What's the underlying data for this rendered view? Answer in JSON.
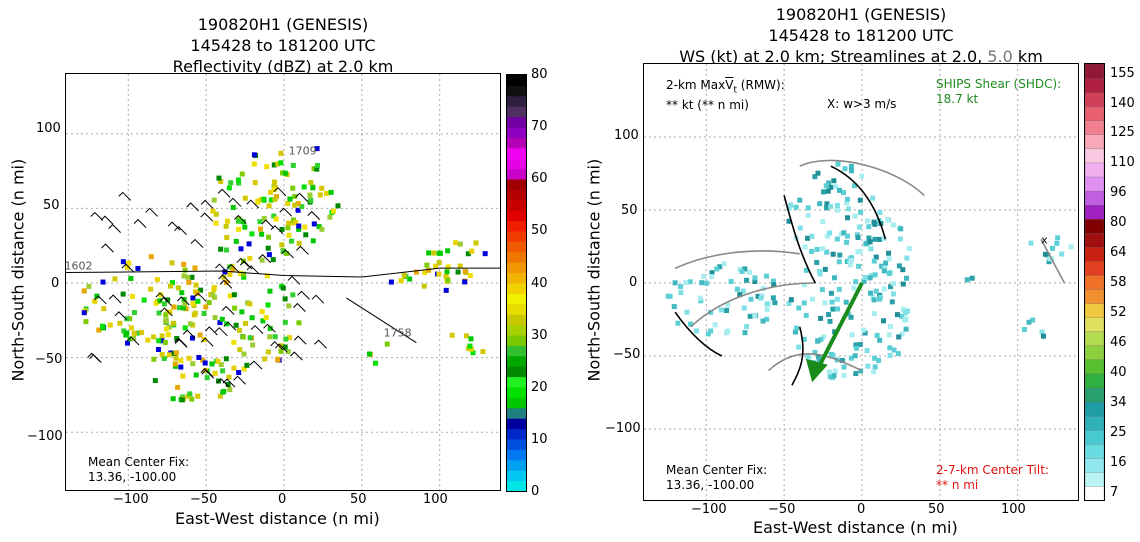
{
  "colors": {
    "shear_arrow": "#1a8c1a",
    "shear_text": "#228b22",
    "tilt_text": "#e01010",
    "grey_label": "#777777"
  },
  "left_panel": {
    "title_lines": [
      "190820H1 (GENESIS)",
      "145428 to 181200 UTC",
      "Reflectivity (dBZ) at 2.0 km"
    ],
    "xlabel": "East-West distance (n mi)",
    "ylabel": "North-South distance (n mi)",
    "xticks": [
      "−100",
      "−50",
      "0",
      "50",
      "100"
    ],
    "yticks": [
      "100",
      "50",
      "0",
      "−50",
      "−100"
    ],
    "mean_center_label": "Mean Center Fix:",
    "mean_center_value": "13.36, -100.00",
    "track_labels": [
      "1602",
      "1709",
      "1758"
    ],
    "colorbar_ticks": [
      "80",
      "70",
      "60",
      "50",
      "40",
      "30",
      "20",
      "10",
      "0"
    ]
  },
  "right_panel": {
    "title_lines": [
      "190820H1 (GENESIS)",
      "145428 to 181200 UTC"
    ],
    "title_line3_a": "WS (kt) at 2.0 km; Streamlines at 2.0,",
    "title_line3_b": "5.0",
    "title_line3_c": "km",
    "xlabel": "East-West distance (n mi)",
    "ylabel": "North-South distance (n mi)",
    "xticks": [
      "−100",
      "−50",
      "0",
      "50",
      "100"
    ],
    "yticks": [
      "100",
      "50",
      "0",
      "−50",
      "−100"
    ],
    "maxvt_line1": "2-km Max",
    "maxvt_symbol": "V",
    "maxvt_sub": "t",
    "maxvt_rest": " (RMW):",
    "maxvt_line2": "** kt (** n mi)",
    "w_marker_text": "X: w>3 m/s",
    "ships_line1": "SHIPS Shear (SHDC):",
    "ships_line2": "18.7 kt",
    "mean_center_label": "Mean Center Fix:",
    "mean_center_value": "13.36, -100.00",
    "tilt_line1": "2-7-km Center Tilt:",
    "tilt_line2": "** n mi",
    "colorbar_ticks": [
      "155",
      "140",
      "125",
      "110",
      "96",
      "80",
      "64",
      "58",
      "52",
      "46",
      "40",
      "34",
      "25",
      "16",
      "7"
    ]
  },
  "chart_data": [
    {
      "type": "heatmap",
      "title": "190820H1 (GENESIS) 145428 to 181200 UTC Reflectivity (dBZ) at 2.0 km",
      "xlabel": "East-West distance (n mi)",
      "ylabel": "North-South distance (n mi)",
      "xlim": [
        -140,
        140
      ],
      "ylim": [
        -140,
        140
      ],
      "grid": true,
      "colorbar": {
        "label": "dBZ",
        "range": [
          0,
          80
        ],
        "ticks": [
          0,
          10,
          20,
          30,
          40,
          50,
          60,
          70,
          80
        ]
      },
      "mean_center_fix": [
        13.36,
        -100.0
      ],
      "track_labels": [
        "1602",
        "1709",
        "1758"
      ]
    },
    {
      "type": "heatmap",
      "title": "190820H1 (GENESIS) 145428 to 181200 UTC WS (kt) at 2.0 km; Streamlines at 2.0, 5.0 km",
      "xlabel": "East-West distance (n mi)",
      "ylabel": "North-South distance (n mi)",
      "xlim": [
        -140,
        140
      ],
      "ylim": [
        -140,
        140
      ],
      "grid": true,
      "colorbar": {
        "label": "kt",
        "ticks": [
          7,
          16,
          25,
          34,
          40,
          46,
          52,
          58,
          64,
          80,
          96,
          110,
          125,
          140,
          155
        ]
      },
      "ships_shear_kt": 18.7,
      "mean_center_fix": [
        13.36,
        -100.0
      ]
    }
  ]
}
